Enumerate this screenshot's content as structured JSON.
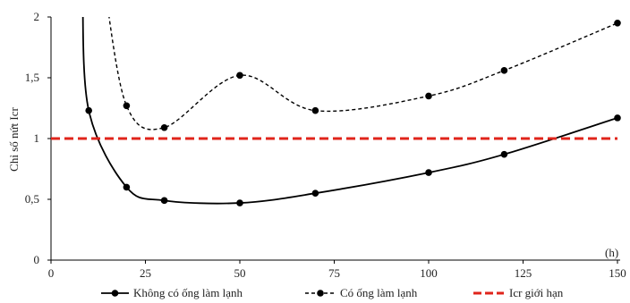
{
  "chart_data": {
    "type": "line",
    "title": "",
    "xlabel": "(h)",
    "ylabel": "Chỉ số nứt Icr",
    "xlim": [
      0,
      150
    ],
    "ylim": [
      0,
      2
    ],
    "x_ticks": [
      0,
      25,
      50,
      75,
      100,
      125,
      150
    ],
    "x_tick_labels": [
      "0",
      "25",
      "50",
      "75",
      "100",
      "125",
      "150"
    ],
    "y_ticks": [
      0,
      0.5,
      1,
      1.5,
      2
    ],
    "y_tick_labels": [
      "0",
      "0,5",
      "1",
      "1,5",
      "2"
    ],
    "grid": false,
    "legend_position": "bottom",
    "series": [
      {
        "name": "Không có ống làm lạnh",
        "style": "solid",
        "color": "#000000",
        "markers": true,
        "x": [
          10,
          20,
          30,
          50,
          70,
          100,
          120,
          150
        ],
        "y": [
          1.23,
          0.6,
          0.49,
          0.47,
          0.55,
          0.72,
          0.87,
          1.17
        ]
      },
      {
        "name": "Có ống làm lạnh",
        "style": "dashed",
        "color": "#000000",
        "markers": true,
        "x": [
          20,
          30,
          50,
          70,
          100,
          120,
          150
        ],
        "y": [
          1.27,
          1.09,
          1.52,
          1.23,
          1.35,
          1.56,
          1.95
        ]
      },
      {
        "name": "Icr giới hạn",
        "style": "dashed-bold",
        "color": "#e0241b",
        "markers": false,
        "x": [
          0,
          150
        ],
        "y": [
          1,
          1
        ]
      }
    ]
  }
}
